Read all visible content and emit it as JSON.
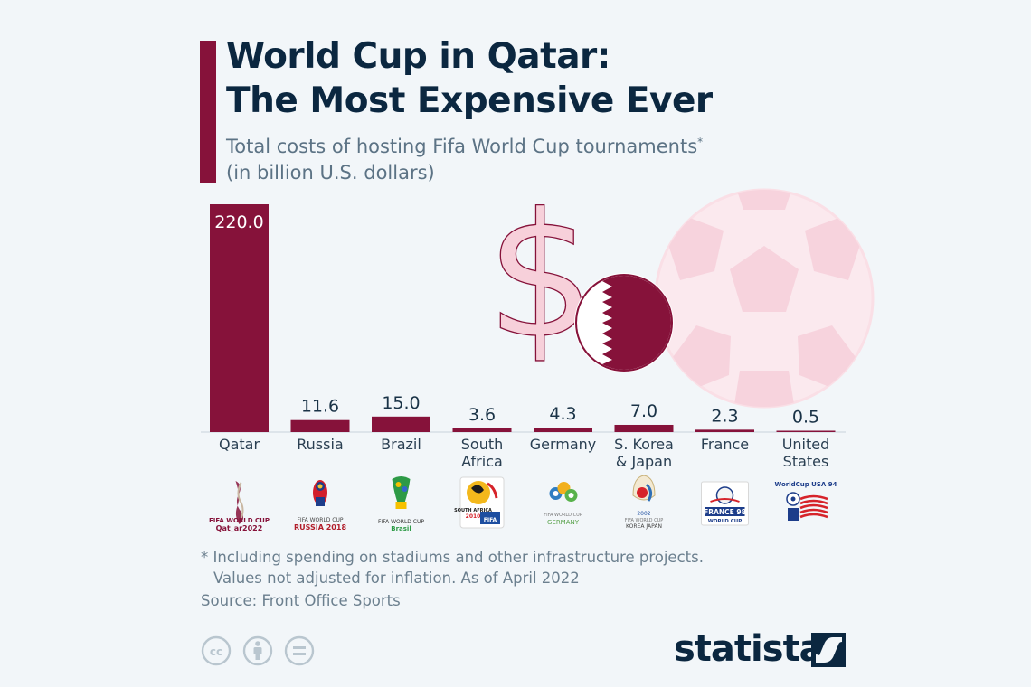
{
  "header": {
    "title_line1": "World Cup in Qatar:",
    "title_line2": "The Most Expensive Ever",
    "subtitle_line1": "Total costs of hosting Fifa World Cup tournaments",
    "subtitle_mark": "*",
    "subtitle_line2": "(in billion U.S. dollars)"
  },
  "chart_data": {
    "type": "bar",
    "title": "World Cup in Qatar: The Most Expensive Ever",
    "subtitle": "Total costs of hosting Fifa World Cup tournaments* (in billion U.S. dollars)",
    "categories": [
      "Qatar",
      "Russia",
      "Brazil",
      "South Africa",
      "Germany",
      "S. Korea & Japan",
      "France",
      "United States"
    ],
    "category_lines": [
      [
        "Qatar"
      ],
      [
        "Russia"
      ],
      [
        "Brazil"
      ],
      [
        "South",
        "Africa"
      ],
      [
        "Germany"
      ],
      [
        "S. Korea",
        "& Japan"
      ],
      [
        "France"
      ],
      [
        "United",
        "States"
      ]
    ],
    "values": [
      220.0,
      11.6,
      15.0,
      3.6,
      4.3,
      7.0,
      2.3,
      0.5
    ],
    "value_labels": [
      "220.0",
      "11.6",
      "15.0",
      "3.6",
      "4.3",
      "7.0",
      "2.3",
      "0.5"
    ],
    "ylim": [
      0,
      220
    ],
    "bar_color": "#86123a",
    "grid": false,
    "legend": "none"
  },
  "logos": [
    {
      "country": "Qatar",
      "text_lines": [
        "FIFA WORLD CUP",
        "Qat_ar2022"
      ],
      "icon": "qatar-2022-emblem"
    },
    {
      "country": "Russia",
      "text_lines": [
        "FIFA WORLD CUP",
        "RUSSIA 2018"
      ],
      "icon": "russia-2018-emblem"
    },
    {
      "country": "Brazil",
      "text_lines": [
        "FIFA WORLD CUP",
        "Brasil"
      ],
      "icon": "brazil-2014-emblem"
    },
    {
      "country": "South Africa",
      "text_lines": [
        "SOUTH",
        "AFRICA",
        "2010",
        "FIFA"
      ],
      "icon": "south-africa-2010-emblem"
    },
    {
      "country": "Germany",
      "text_lines": [
        "FIFA WORLD CUP",
        "GERMANY"
      ],
      "icon": "germany-2006-emblem"
    },
    {
      "country": "S. Korea & Japan",
      "text_lines": [
        "2002",
        "FIFA WORLD CUP",
        "KOREA JAPAN"
      ],
      "icon": "korea-japan-2002-emblem"
    },
    {
      "country": "France",
      "text_lines": [
        "FRANCE 98",
        "WORLD CUP"
      ],
      "icon": "france-98-emblem"
    },
    {
      "country": "United States",
      "text_lines": [
        "WorldCup USA 94"
      ],
      "icon": "usa-94-emblem"
    }
  ],
  "footnote": {
    "line1": "* Including spending on stadiums and other infrastructure projects.",
    "line2": "Values not adjusted for inflation. As of April 2022"
  },
  "source": "Source: Front Office Sports",
  "brand": {
    "name": "statista"
  },
  "license_icons": [
    "cc-icon",
    "attribution-icon",
    "no-derivatives-icon"
  ],
  "decor_icons": [
    "dollar-sign-icon",
    "qatar-flag-icon",
    "soccer-ball-icon"
  ],
  "colors": {
    "background": "#f2f6f9",
    "accent": "#86123a",
    "title": "#0b2740",
    "subtitle": "#5c7385",
    "muted": "#6b7f8e",
    "decor_pink": "#f7cfd9"
  }
}
